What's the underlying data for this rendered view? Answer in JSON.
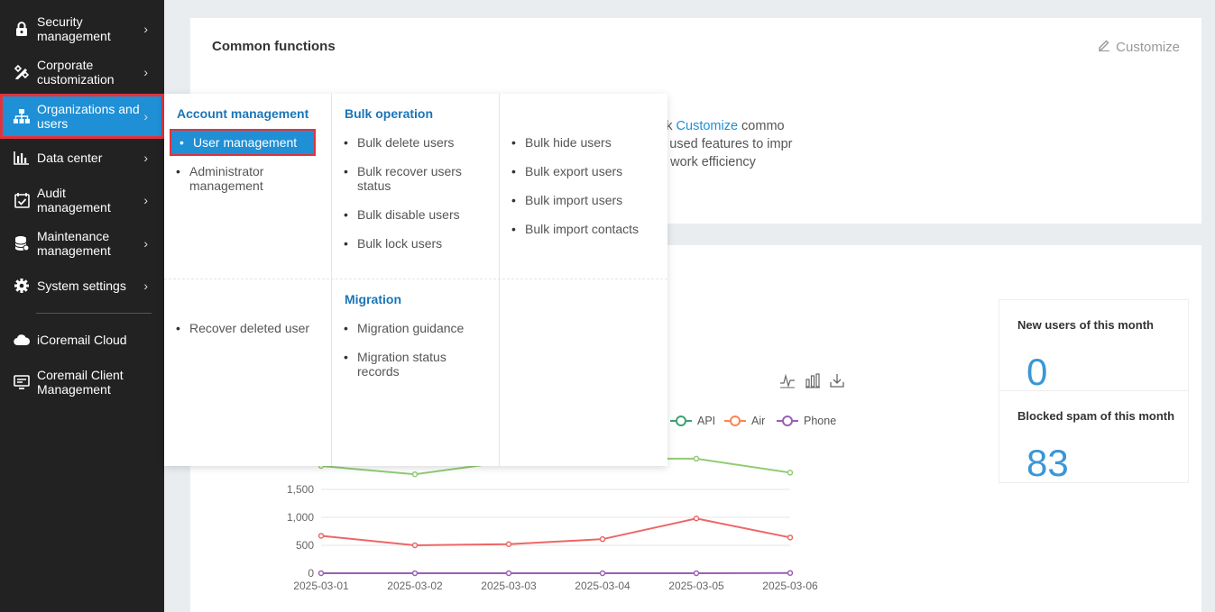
{
  "sidebar": {
    "items": [
      {
        "label": "Security management",
        "icon": "lock-icon"
      },
      {
        "label": "Corporate customization",
        "icon": "pencil-ruler-icon"
      },
      {
        "label": "Organizations and users",
        "icon": "org-chart-icon"
      },
      {
        "label": "Data center",
        "icon": "bar-chart-icon"
      },
      {
        "label": "Audit management",
        "icon": "calendar-check-icon"
      },
      {
        "label": "Maintenance management",
        "icon": "database-icon"
      },
      {
        "label": "System settings",
        "icon": "gear-icon"
      },
      {
        "label": "iCoremail Cloud",
        "icon": "cloud-icon"
      },
      {
        "label": "Coremail Client Management",
        "icon": "client-icon"
      }
    ],
    "chevron": "›"
  },
  "common": {
    "title": "Common functions",
    "customize": "Customize",
    "hint_line1_prefix": "ck ",
    "hint_link": "Customize",
    "hint_line1_suffix": " commo",
    "hint_line2": "y used features to impr",
    "hint_line3": "e work efficiency"
  },
  "flyout": {
    "account": {
      "title": "Account management",
      "items": [
        "User management",
        "Administrator management"
      ]
    },
    "bulk": {
      "title": "Bulk operation",
      "col1": [
        "Bulk delete users",
        "Bulk recover users status",
        "Bulk disable users",
        "Bulk lock users"
      ],
      "col2": [
        "Bulk hide users",
        "Bulk export users",
        "Bulk import users",
        "Bulk import contacts"
      ]
    },
    "recover": "Recover deleted user",
    "migration": {
      "title": "Migration",
      "items": [
        "Migration guidance",
        "Migration status records"
      ]
    }
  },
  "stats": {
    "new_users_label": "New users of this month",
    "new_users_value": "0",
    "spam_label": "Blocked spam of this month",
    "spam_value": "83"
  },
  "legend": [
    "API",
    "Air",
    "Phone"
  ],
  "colors": {
    "accent": "#1f8fd6",
    "highlight": "#e0343d",
    "green": "#91cc75",
    "red": "#ee6666",
    "purple": "#9a60b4",
    "api_legend": "#3ba272",
    "air_legend": "#fc8452"
  },
  "chart_data": {
    "type": "line",
    "x": [
      "2025-03-01",
      "2025-03-02",
      "2025-03-03",
      "2025-03-04",
      "2025-03-05",
      "2025-03-06"
    ],
    "y_ticks": [
      "0",
      "500",
      "1,000",
      "1,500"
    ],
    "ylim": [
      0,
      2000
    ],
    "series": [
      {
        "values": [
          1920,
          1770,
          2000,
          2050,
          2050,
          1800
        ],
        "color": "#91cc75"
      },
      {
        "values": [
          670,
          500,
          520,
          610,
          980,
          640
        ],
        "color": "#ee6666"
      },
      {
        "values": [
          0,
          0,
          0,
          0,
          0,
          5
        ],
        "color": "#9a60b4"
      }
    ]
  }
}
